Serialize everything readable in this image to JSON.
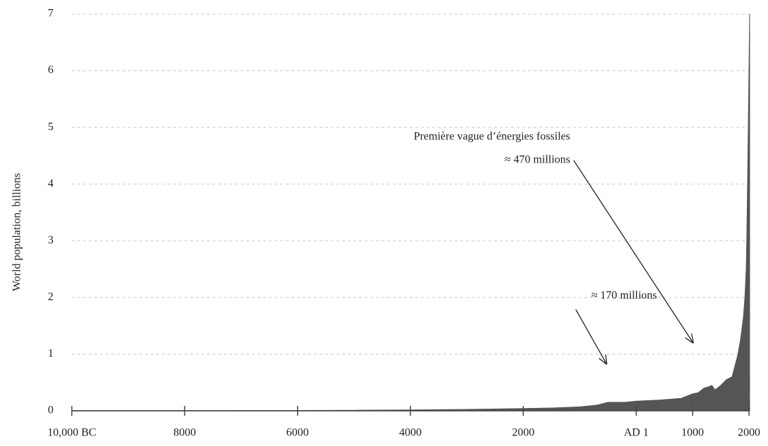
{
  "chart_data": {
    "type": "area",
    "ylabel": "World population, billions",
    "x": [
      -10000,
      -8000,
      -6000,
      -5000,
      -4000,
      -3000,
      -2000,
      -1500,
      -1000,
      -700,
      -500,
      -200,
      1,
      400,
      800,
      1000,
      1100,
      1200,
      1300,
      1340,
      1400,
      1500,
      1600,
      1700,
      1800,
      1850,
      1900,
      1927,
      1950,
      1960,
      1974,
      1987,
      1999,
      2011
    ],
    "values": [
      0.004,
      0.005,
      0.006,
      0.01,
      0.015,
      0.025,
      0.04,
      0.05,
      0.07,
      0.1,
      0.15,
      0.15,
      0.17,
      0.19,
      0.22,
      0.3,
      0.32,
      0.4,
      0.43,
      0.45,
      0.37,
      0.45,
      0.55,
      0.6,
      0.98,
      1.26,
      1.65,
      2,
      2.5,
      3,
      4,
      5,
      6,
      7
    ],
    "color": "#555555",
    "xlim": [
      -10000,
      2012
    ],
    "xticks": [
      {
        "value": -10000,
        "label": "10,000 BC"
      },
      {
        "value": -8000,
        "label": "8000"
      },
      {
        "value": -6000,
        "label": "6000"
      },
      {
        "value": -4000,
        "label": "4000"
      },
      {
        "value": -2000,
        "label": "2000"
      },
      {
        "value": 1,
        "label": "AD 1"
      },
      1000,
      2000
    ],
    "ylim": [
      0,
      7
    ],
    "yticks": [
      0,
      1,
      2,
      3,
      4,
      5,
      6,
      7
    ],
    "grid": true,
    "annotations": [
      "Première vague d’énergies fossiles",
      "≈ 470 millions",
      "≈ 170 millions"
    ]
  }
}
